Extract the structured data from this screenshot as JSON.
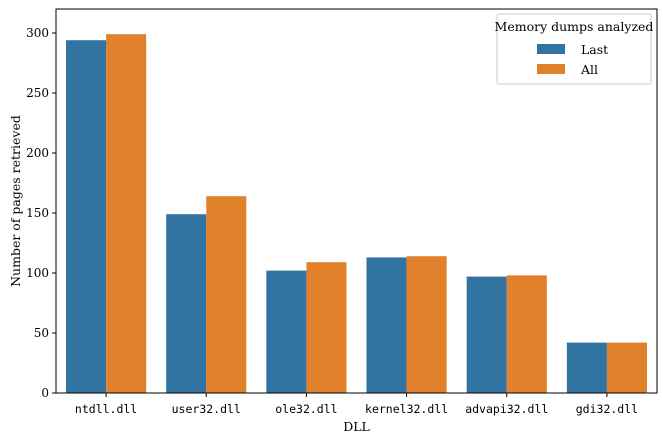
{
  "chart_data": {
    "type": "bar",
    "xlabel": "DLL",
    "ylabel": "Number of pages retrieved",
    "ylim": [
      0,
      320
    ],
    "yticks": [
      0,
      50,
      100,
      150,
      200,
      250,
      300
    ],
    "grid": false,
    "legend": {
      "title": "Memory dumps analyzed",
      "placement": "top-right"
    },
    "categories": [
      "ntdll.dll",
      "user32.dll",
      "ole32.dll",
      "kernel32.dll",
      "advapi32.dll",
      "gdi32.dll"
    ],
    "series": [
      {
        "name": "Last",
        "color": "#3274a1",
        "values": [
          294,
          149,
          102,
          113,
          97,
          42
        ]
      },
      {
        "name": "All",
        "color": "#e1812c",
        "values": [
          299,
          164,
          109,
          114,
          98,
          42
        ]
      }
    ]
  }
}
